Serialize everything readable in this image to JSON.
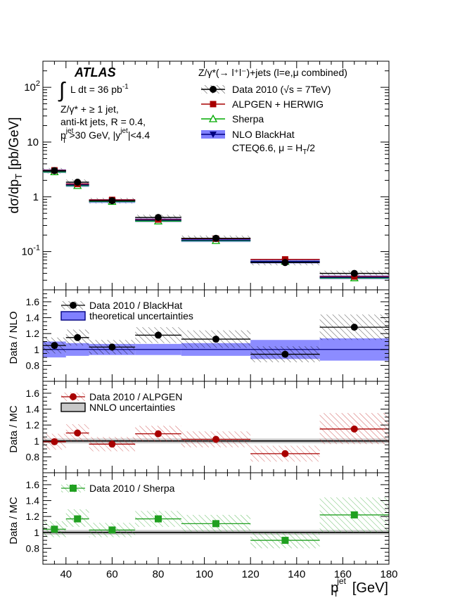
{
  "figure": {
    "atlas_label": "ATLAS",
    "lumi_integral": "∫",
    "lumi_text": "L dt = 36 pb",
    "lumi_sup": "-1",
    "selection_lines": [
      "Z/γ* + ≥ 1 jet,",
      "anti-kt jets,  R = 0.4,"
    ],
    "cut_line": {
      "p": "p",
      "jet": "jet",
      "T": "T",
      "cut": ">30 GeV, |y",
      "jet2": "jet",
      "eta": "|<4.4"
    },
    "process_title": "Z/γ*(→ l⁺l⁻)+jets (l=e,μ combined)",
    "pdf_note": "CTEQ6.6, μ = H",
    "pdf_note_sub": "T",
    "pdf_note_tail": "/2",
    "ylabel_top": {
      "main": "dσ/dp",
      "sub": "T",
      "unit": " [pb/GeV]"
    },
    "ylabel_r1": "Data / NLO",
    "ylabel_r2": "Data / MC",
    "ylabel_r3": "Data / MC",
    "xlabel": {
      "main": "p",
      "sup": "jet",
      "sub": "T",
      "unit": " [GeV]"
    }
  },
  "chart_data": [
    {
      "panel": "main",
      "type": "scatter",
      "ylog": true,
      "xlim": [
        30,
        180
      ],
      "ylim": [
        0.02,
        300
      ],
      "yticks": [
        0.1,
        1,
        10,
        100
      ],
      "ytick_labels": [
        {
          "base": "10",
          "exp": "-1"
        },
        {
          "base": "1",
          "exp": ""
        },
        {
          "base": "10",
          "exp": ""
        },
        {
          "base": "10",
          "exp": "2"
        }
      ],
      "bins": [
        [
          30,
          40
        ],
        [
          40,
          50
        ],
        [
          50,
          70
        ],
        [
          70,
          90
        ],
        [
          90,
          120
        ],
        [
          120,
          150
        ],
        [
          150,
          180
        ]
      ],
      "x": [
        35,
        45,
        60,
        80,
        105,
        135,
        165
      ],
      "series": [
        {
          "name": "Data 2010 (√s = 7TeV)",
          "marker": "circle",
          "color": "#000000",
          "values": [
            3.0,
            1.85,
            0.85,
            0.42,
            0.175,
            0.063,
            0.04
          ]
        },
        {
          "name": "ALPGEN + HERWIG",
          "marker": "square",
          "color": "#a80000",
          "values": [
            3.05,
            1.72,
            0.88,
            0.385,
            0.172,
            0.072,
            0.035
          ]
        },
        {
          "name": "Sherpa",
          "marker": "triangle-open",
          "color": "#00aa00",
          "values": [
            2.85,
            1.6,
            0.82,
            0.36,
            0.158,
            0.066,
            0.033
          ]
        },
        {
          "name": "NLO BlackHat",
          "marker": "triangle-down",
          "color": "#000080",
          "values": [
            2.95,
            1.65,
            0.84,
            0.375,
            0.162,
            0.066,
            0.034
          ]
        }
      ],
      "legend": [
        "Data 2010 (√s = 7TeV)",
        "ALPGEN + HERWIG",
        "Sherpa",
        "NLO BlackHat"
      ]
    },
    {
      "panel": "ratio-nlo",
      "type": "scatter",
      "ylabel": "Data / NLO",
      "xlim": [
        30,
        180
      ],
      "ylim": [
        0.6,
        1.75
      ],
      "yticks": [
        0.8,
        1,
        1.2,
        1.4,
        1.6
      ],
      "bins": [
        [
          30,
          40
        ],
        [
          40,
          50
        ],
        [
          50,
          70
        ],
        [
          70,
          90
        ],
        [
          90,
          120
        ],
        [
          120,
          150
        ],
        [
          150,
          180
        ]
      ],
      "x": [
        35,
        45,
        60,
        80,
        105,
        135,
        165
      ],
      "values": [
        1.05,
        1.15,
        1.03,
        1.18,
        1.13,
        0.94,
        1.28
      ],
      "data_band": [
        [
          0.95,
          1.15
        ],
        [
          1.05,
          1.25
        ],
        [
          0.94,
          1.12
        ],
        [
          1.08,
          1.28
        ],
        [
          1.02,
          1.24
        ],
        [
          0.84,
          1.04
        ],
        [
          1.12,
          1.44
        ]
      ],
      "theory_band": [
        [
          0.9,
          1.1
        ],
        [
          0.92,
          1.08
        ],
        [
          0.93,
          1.07
        ],
        [
          0.93,
          1.07
        ],
        [
          0.92,
          1.08
        ],
        [
          0.88,
          1.12
        ],
        [
          0.86,
          1.14
        ]
      ],
      "legend": [
        "Data 2010 / BlackHat",
        "theoretical uncertainties"
      ]
    },
    {
      "panel": "ratio-alpgen",
      "type": "scatter",
      "ylabel": "Data / MC",
      "xlim": [
        30,
        180
      ],
      "ylim": [
        0.6,
        1.75
      ],
      "yticks": [
        0.8,
        1,
        1.2,
        1.4,
        1.6
      ],
      "bins": [
        [
          30,
          40
        ],
        [
          40,
          50
        ],
        [
          50,
          70
        ],
        [
          70,
          90
        ],
        [
          90,
          120
        ],
        [
          120,
          150
        ],
        [
          150,
          180
        ]
      ],
      "x": [
        35,
        45,
        60,
        80,
        105,
        135,
        165
      ],
      "values": [
        0.99,
        1.1,
        0.96,
        1.09,
        1.02,
        0.84,
        1.15
      ],
      "data_band": [
        [
          0.89,
          1.09
        ],
        [
          0.99,
          1.21
        ],
        [
          0.87,
          1.05
        ],
        [
          0.99,
          1.19
        ],
        [
          0.92,
          1.12
        ],
        [
          0.74,
          0.94
        ],
        [
          0.96,
          1.35
        ]
      ],
      "nnlo_band": [
        [
          0.97,
          1.03
        ],
        [
          0.97,
          1.03
        ],
        [
          0.97,
          1.03
        ],
        [
          0.97,
          1.03
        ],
        [
          0.97,
          1.03
        ],
        [
          0.97,
          1.03
        ],
        [
          0.97,
          1.03
        ]
      ],
      "legend": [
        "Data 2010 / ALPGEN",
        "NNLO uncertainties"
      ]
    },
    {
      "panel": "ratio-sherpa",
      "type": "scatter",
      "ylabel": "Data / MC",
      "xlim": [
        30,
        180
      ],
      "ylim": [
        0.6,
        1.75
      ],
      "yticks": [
        0.8,
        1,
        1.2,
        1.4,
        1.6
      ],
      "xticks": [
        40,
        60,
        80,
        100,
        120,
        140,
        160,
        180
      ],
      "bins": [
        [
          30,
          40
        ],
        [
          40,
          50
        ],
        [
          50,
          70
        ],
        [
          70,
          90
        ],
        [
          90,
          120
        ],
        [
          120,
          150
        ],
        [
          150,
          180
        ]
      ],
      "x": [
        35,
        45,
        60,
        80,
        105,
        135,
        165
      ],
      "values": [
        1.04,
        1.17,
        1.03,
        1.17,
        1.11,
        0.9,
        1.22
      ],
      "data_band": [
        [
          0.94,
          1.14
        ],
        [
          1.07,
          1.29
        ],
        [
          0.94,
          1.12
        ],
        [
          1.07,
          1.27
        ],
        [
          1.01,
          1.22
        ],
        [
          0.8,
          1.0
        ],
        [
          1.0,
          1.44
        ]
      ],
      "nnlo_band": [
        [
          0.97,
          1.03
        ],
        [
          0.97,
          1.03
        ],
        [
          0.97,
          1.03
        ],
        [
          0.97,
          1.03
        ],
        [
          0.97,
          1.03
        ],
        [
          0.97,
          1.03
        ],
        [
          0.97,
          1.03
        ]
      ],
      "legend": [
        "Data 2010 / Sherpa"
      ]
    }
  ]
}
